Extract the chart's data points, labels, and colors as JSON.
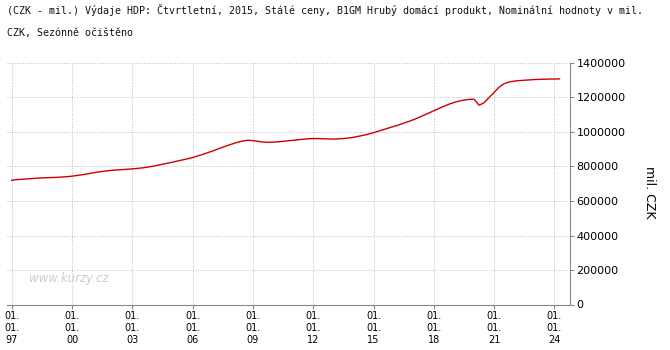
{
  "title_line1": "(CZK - mil.) Výdaje HDP: Čtvrtletní, 2015, Stálé ceny, B1GM Hrubý domácí produkt, Nominální hodnoty v mil.",
  "title_line2": "CZK, Sezónně očištěno",
  "ylabel": "mil. CZK",
  "line_color": "#cc0000",
  "background_color": "#ffffff",
  "grid_color": "#bbbbbb",
  "watermark": "www.kurzy.cz",
  "watermark_color": "#cccccc",
  "ylim": [
    0,
    1400000
  ],
  "yticks": [
    0,
    200000,
    400000,
    600000,
    800000,
    1000000,
    1200000,
    1400000
  ],
  "xlim_start": 1996.75,
  "xlim_end": 2024.75,
  "xtick_years": [
    1997,
    2000,
    2003,
    2006,
    2009,
    2012,
    2015,
    2018,
    2021,
    2024
  ],
  "data_years": [
    1997.0,
    1997.25,
    1997.5,
    1997.75,
    1998.0,
    1998.25,
    1998.5,
    1998.75,
    1999.0,
    1999.25,
    1999.5,
    1999.75,
    2000.0,
    2000.25,
    2000.5,
    2000.75,
    2001.0,
    2001.25,
    2001.5,
    2001.75,
    2002.0,
    2002.25,
    2002.5,
    2002.75,
    2003.0,
    2003.25,
    2003.5,
    2003.75,
    2004.0,
    2004.25,
    2004.5,
    2004.75,
    2005.0,
    2005.25,
    2005.5,
    2005.75,
    2006.0,
    2006.25,
    2006.5,
    2006.75,
    2007.0,
    2007.25,
    2007.5,
    2007.75,
    2008.0,
    2008.25,
    2008.5,
    2008.75,
    2009.0,
    2009.25,
    2009.5,
    2009.75,
    2010.0,
    2010.25,
    2010.5,
    2010.75,
    2011.0,
    2011.25,
    2011.5,
    2011.75,
    2012.0,
    2012.25,
    2012.5,
    2012.75,
    2013.0,
    2013.25,
    2013.5,
    2013.75,
    2014.0,
    2014.25,
    2014.5,
    2014.75,
    2015.0,
    2015.25,
    2015.5,
    2015.75,
    2016.0,
    2016.25,
    2016.5,
    2016.75,
    2017.0,
    2017.25,
    2017.5,
    2017.75,
    2018.0,
    2018.25,
    2018.5,
    2018.75,
    2019.0,
    2019.25,
    2019.5,
    2019.75,
    2020.0,
    2020.25,
    2020.5,
    2020.75,
    2021.0,
    2021.25,
    2021.5,
    2021.75,
    2022.0,
    2022.25,
    2022.5,
    2022.75,
    2023.0,
    2023.25,
    2023.5,
    2023.75,
    2024.0,
    2024.25
  ],
  "data_values": [
    720000,
    724000,
    726000,
    728000,
    730000,
    732000,
    734000,
    735000,
    736000,
    737000,
    739000,
    741000,
    744000,
    748000,
    752000,
    757000,
    762000,
    767000,
    771000,
    775000,
    778000,
    780000,
    782000,
    784000,
    786000,
    789000,
    792000,
    796000,
    801000,
    807000,
    813000,
    819000,
    825000,
    832000,
    838000,
    845000,
    852000,
    861000,
    870000,
    880000,
    890000,
    901000,
    912000,
    922000,
    932000,
    941000,
    948000,
    952000,
    950000,
    946000,
    942000,
    940000,
    941000,
    943000,
    946000,
    949000,
    952000,
    955000,
    958000,
    961000,
    962000,
    962000,
    961000,
    960000,
    959000,
    960000,
    962000,
    965000,
    969000,
    975000,
    981000,
    988000,
    996000,
    1005000,
    1014000,
    1023000,
    1032000,
    1041000,
    1051000,
    1061000,
    1072000,
    1084000,
    1097000,
    1110000,
    1123000,
    1136000,
    1149000,
    1161000,
    1171000,
    1179000,
    1185000,
    1189000,
    1190000,
    1155000,
    1170000,
    1200000,
    1230000,
    1260000,
    1280000,
    1290000,
    1295000,
    1298000,
    1300000,
    1302000,
    1304000,
    1305000,
    1306000,
    1307000,
    1307000,
    1308000
  ]
}
